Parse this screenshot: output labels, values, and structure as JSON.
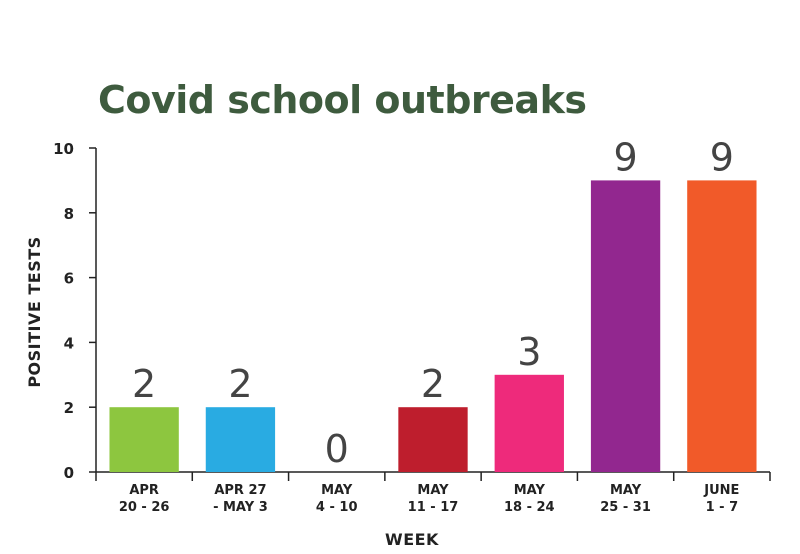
{
  "chart_data": {
    "type": "bar",
    "title": "Covid school outbreaks",
    "xlabel": "WEEK",
    "ylabel": "POSITIVE TESTS",
    "ylim": [
      0,
      10
    ],
    "yticks": [
      "0",
      "2",
      "4",
      "6",
      "8",
      "10"
    ],
    "grid": false,
    "categories": [
      [
        "APR",
        "20 - 26"
      ],
      [
        "APR 27",
        "- MAY 3"
      ],
      [
        "MAY",
        "4 - 10"
      ],
      [
        "MAY",
        "11 - 17"
      ],
      [
        "MAY",
        "18 - 24"
      ],
      [
        "MAY",
        "25 - 31"
      ],
      [
        "JUNE",
        "1 - 7"
      ]
    ],
    "values": [
      2,
      2,
      0,
      2,
      3,
      9,
      9
    ],
    "data_labels": [
      "2",
      "2",
      "0",
      "2",
      "3",
      "9",
      "9"
    ],
    "colors": [
      "#8dc63f",
      "#29abe2",
      "#999999",
      "#be1e2d",
      "#ee2a7b",
      "#92278f",
      "#f15a29"
    ]
  }
}
